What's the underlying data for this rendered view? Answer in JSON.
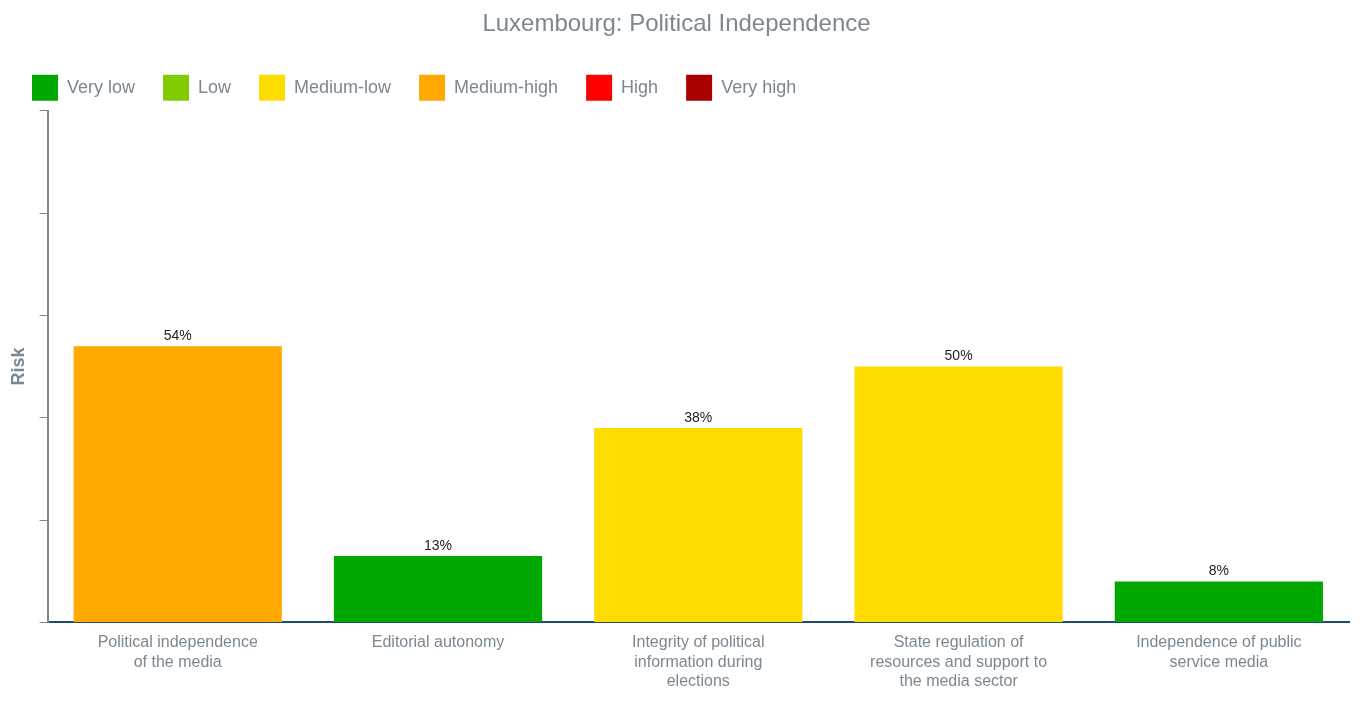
{
  "chart_data": {
    "type": "bar",
    "title": "Luxembourg: Political Independence",
    "ylabel": "Risk",
    "categories": [
      "Political independence of the media",
      "Editorial autonomy",
      "Integrity of political information during elections",
      "State regulation of resources and support to the media sector",
      "Independence of public service media"
    ],
    "legend": "top left",
    "tick_labels": "x",
    "ylim": [
      0,
      100
    ],
    "yticks": [
      {
        "value": 0,
        "label": null
      },
      {
        "value": 20,
        "label": null
      },
      {
        "value": 40,
        "label": null
      },
      {
        "value": 60,
        "label": null
      },
      {
        "value": 80,
        "label": null
      },
      {
        "value": 100,
        "label": null
      }
    ],
    "series": [
      {
        "name": "Very low",
        "color": "#00a800",
        "values": [
          null,
          13,
          null,
          null,
          8
        ],
        "value_labels": [
          null,
          "13%",
          null,
          null,
          "8%"
        ]
      },
      {
        "name": "Low",
        "color": "#80cc00",
        "values": [
          null,
          null,
          null,
          null,
          null
        ],
        "value_labels": [
          null,
          null,
          null,
          null,
          null
        ]
      },
      {
        "name": "Medium-low",
        "color": "#ffdc00",
        "values": [
          null,
          null,
          38,
          50,
          null
        ],
        "value_labels": [
          null,
          null,
          "38%",
          "50%",
          null
        ]
      },
      {
        "name": "Medium-high",
        "color": "#ffa800",
        "values": [
          54,
          null,
          null,
          null,
          null
        ],
        "value_labels": [
          "54%",
          null,
          null,
          null,
          null
        ]
      },
      {
        "name": "High",
        "color": "#ff0000",
        "values": [
          null,
          null,
          null,
          null,
          null
        ],
        "value_labels": [
          null,
          null,
          null,
          null,
          null
        ]
      },
      {
        "name": "Very high",
        "color": "#a80000",
        "values": [
          null,
          null,
          null,
          null,
          null
        ],
        "value_labels": [
          null,
          null,
          null,
          null,
          null
        ]
      }
    ]
  }
}
